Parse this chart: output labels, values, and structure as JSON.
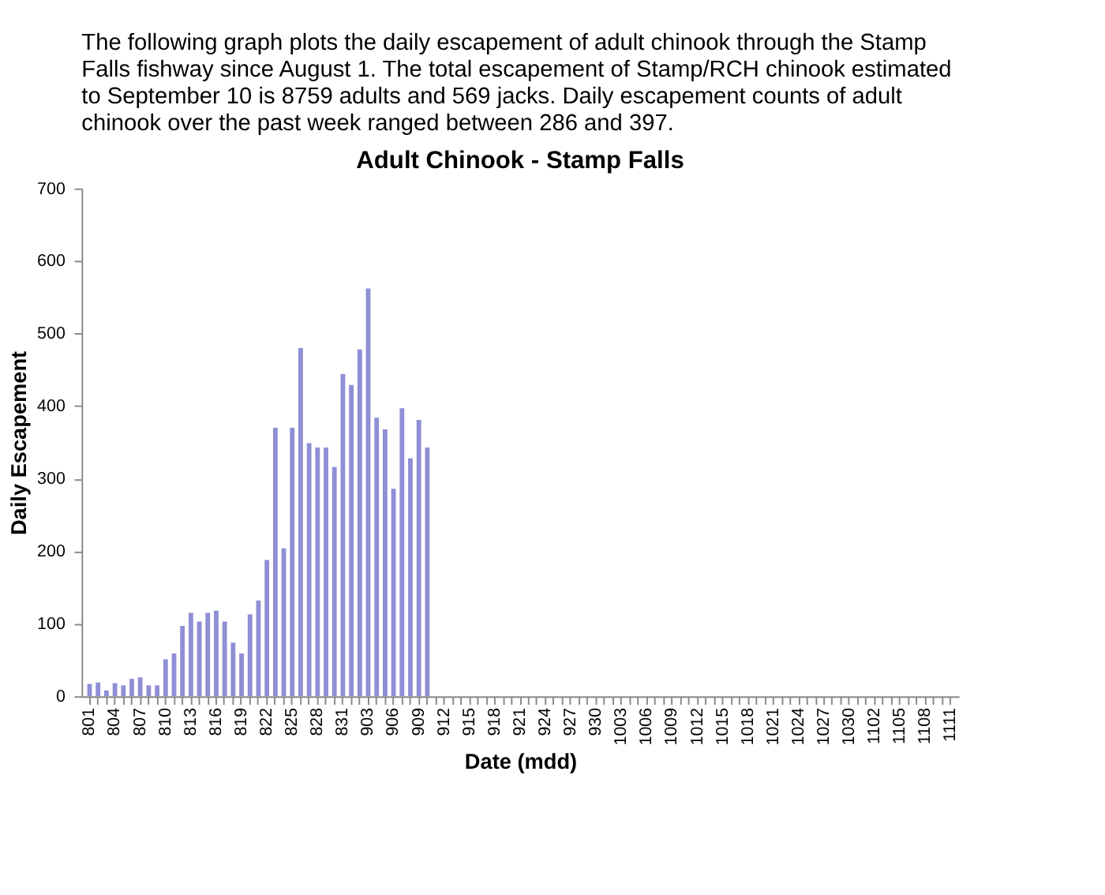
{
  "chart_data": {
    "type": "bar",
    "title": "Adult Chinook - Stamp Falls",
    "xlabel": "Date (mdd)",
    "ylabel": "Daily Escapement",
    "annotations": [
      "The following graph plots the daily escapement of adult chinook through the Stamp Falls fishway since August 1.  The total escapement of Stamp/RCH chinook estimated to September 10 is 8759 adults and 569 jacks. Daily escapement counts of adult chinook over the past week ranged between 286 and 397."
    ],
    "categories": [
      "801",
      null,
      null,
      "804",
      null,
      null,
      "807",
      null,
      null,
      "810",
      null,
      null,
      "813",
      null,
      null,
      "816",
      null,
      null,
      "819",
      null,
      null,
      "822",
      null,
      null,
      "825",
      null,
      null,
      "828",
      null,
      null,
      "831",
      null,
      null,
      "903",
      null,
      null,
      "906",
      null,
      null,
      "909",
      null,
      null,
      "912",
      null,
      null,
      "915",
      null,
      null,
      "918",
      null,
      null,
      "921",
      null,
      null,
      "924",
      null,
      null,
      "927",
      null,
      null,
      "930",
      null,
      null,
      "1003",
      null,
      null,
      "1006",
      null,
      null,
      "1009",
      null,
      null,
      "1012",
      null,
      null,
      "1015",
      null,
      null,
      "1018",
      null,
      null,
      "1021",
      null,
      null,
      "1024",
      null,
      null,
      "1027",
      null,
      null,
      "1030",
      null,
      null,
      "1102",
      null,
      null,
      "1105",
      null,
      null,
      "1108",
      null,
      null,
      "1111"
    ],
    "values": [
      17,
      19,
      8,
      18,
      15,
      24,
      26,
      15,
      15,
      51,
      59,
      97,
      115,
      103,
      115,
      118,
      103,
      74,
      59,
      113,
      132,
      188,
      370,
      204,
      370,
      480,
      349,
      343,
      343,
      316,
      444,
      429,
      478,
      562,
      384,
      368,
      286,
      397,
      328,
      381,
      343,
      null,
      null,
      null,
      null,
      null,
      null,
      null,
      null,
      null,
      null,
      null,
      null,
      null,
      null,
      null,
      null,
      null,
      null,
      null,
      null,
      null,
      null,
      null,
      null,
      null,
      null,
      null,
      null,
      null,
      null,
      null,
      null,
      null,
      null,
      null,
      null,
      null,
      null,
      null,
      null,
      null,
      null,
      null,
      null,
      null,
      null,
      null,
      null,
      null,
      null,
      null,
      null,
      null,
      null,
      null,
      null,
      null,
      null,
      null,
      null,
      null,
      null
    ],
    "color": "#8f8fd6",
    "ylim": [
      0,
      700
    ],
    "yticks": [
      0,
      100,
      200,
      300,
      400,
      500,
      600,
      700
    ],
    "grid": false
  }
}
